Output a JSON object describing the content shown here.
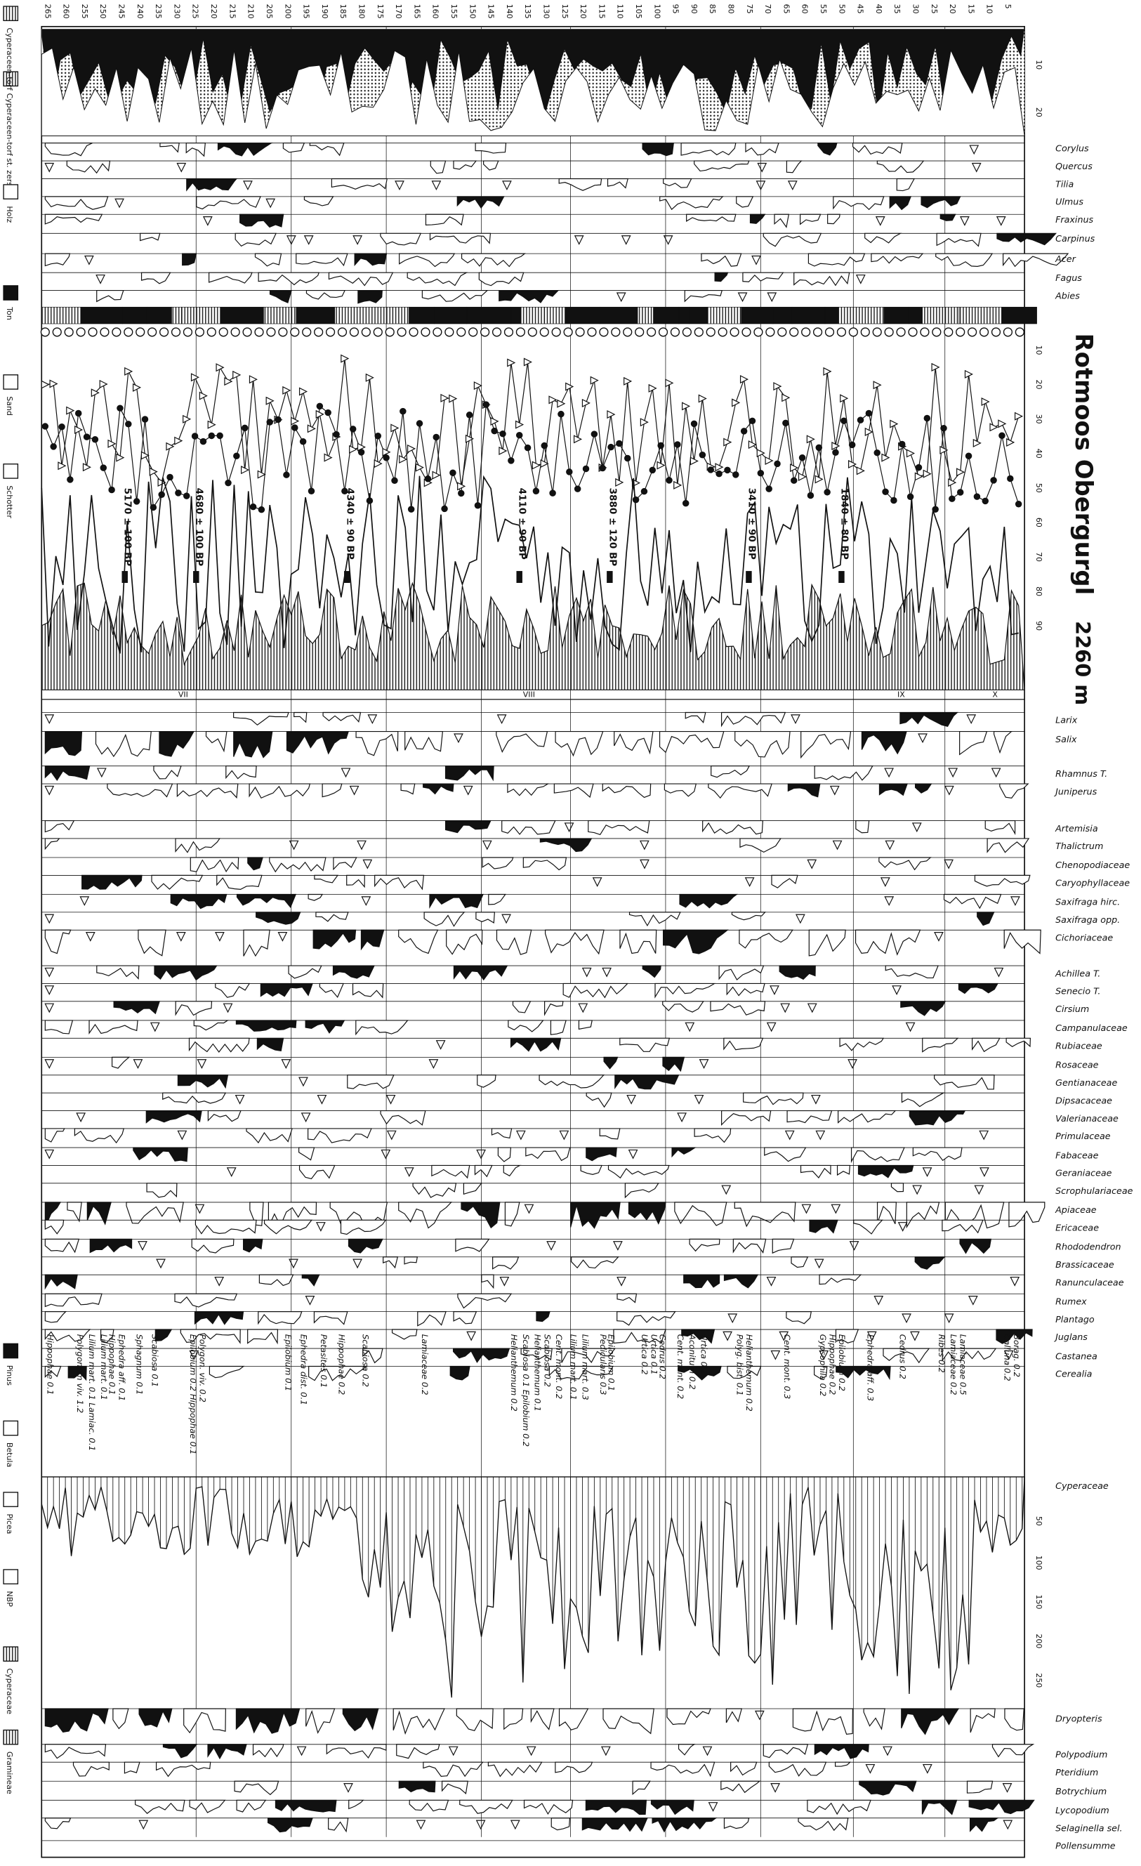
{
  "title": "Rotmoos Obergurgl",
  "elevation": "2260 m",
  "depths": [
    "265",
    "260",
    "255",
    "250",
    "245",
    "240",
    "235",
    "230",
    "225",
    "220",
    "215",
    "210",
    "205",
    "200",
    "195",
    "190",
    "185",
    "180",
    "175",
    "170",
    "165",
    "160",
    "155",
    "150",
    "145",
    "140",
    "135",
    "130",
    "125",
    "120",
    "115",
    "110",
    "105",
    "100",
    "95",
    "90",
    "85",
    "80",
    "75",
    "70",
    "65",
    "60",
    "55",
    "50",
    "45",
    "40",
    "35",
    "30",
    "25",
    "20",
    "15",
    "10",
    "5"
  ],
  "upper_taxa": [
    "Corylus",
    "Quercus",
    "Tilia",
    "Ulmus",
    "Fraxinus",
    "Carpinus",
    "Acer",
    "Fagus",
    "Abies"
  ],
  "lower_taxa": [
    "Larix",
    "Salix",
    "Rhamnus T.",
    "Juniperus",
    "Artemisia",
    "Thalictrum",
    "Chenopodiaceae",
    "Caryophyllaceae",
    "Saxifraga hirc.",
    "Saxifraga opp.",
    "Cichoriaceae",
    "Achillea T.",
    "Senecio T.",
    "Cirsium",
    "Campanulaceae",
    "Rubiaceae",
    "Rosaceae",
    "Gentianaceae",
    "Dipsacaceae",
    "Valerianaceae",
    "Primulaceae",
    "Fabaceae",
    "Geraniaceae",
    "Scrophulariaceae",
    "Apiaceae",
    "Ericaceae",
    "Rhododendron",
    "Brassicaceae",
    "Ranunculaceae",
    "Rumex",
    "Plantago",
    "Juglans",
    "Castanea",
    "Cerealia"
  ],
  "cyperaceae_label": "Cyperaceae",
  "fern_taxa": [
    "Dryopteris",
    "Polypodium",
    "Pteridium",
    "Botrychium",
    "Lycopodium",
    "Selaginella sel.",
    "Pollensumme"
  ],
  "dates": [
    "5170 ± 100 BP",
    "4680 ± 100 BP",
    "4340 ± 90 BP",
    "4110 ± 90 BP",
    "3880 ± 120 BP",
    "3410 ± 90 BP",
    "1840 ± 80 BP"
  ],
  "zones": [
    "VII",
    "VIII",
    "IX",
    "X"
  ],
  "top_scale": [
    "10",
    "20"
  ],
  "mid_scale": [
    "10",
    "20",
    "30",
    "40",
    "50",
    "60",
    "70",
    "80",
    "90"
  ],
  "cyp_scale": [
    "50",
    "100",
    "150",
    "200",
    "250"
  ],
  "legend": [
    "Cyperaceen-torf",
    "Cyperaceen-torf st. zers.",
    "Holz",
    "Ton",
    "Sand",
    "Schotter",
    "Pinus",
    "Betula",
    "Picea",
    "NBP",
    "Cyperaceae",
    "Gramineae"
  ],
  "rare_taxa": [
    "Hippophae 0.1",
    "Polygonum viv. 1.2",
    "Lilium mart. 0.1 Lamiac. 0.1",
    "Lilium mart. 0.1",
    "Hippophae 0.1",
    "Ephedra aff. 0.1",
    "Sphagnum 0.1",
    "Scabiosa 0.1",
    "Epilobium 0.2 Hippophae 0.1",
    "Polygon. viv. 0.2",
    "Epilobium 0.1",
    "Ephedra dist. 0.1",
    "Petasites 0.1",
    "Hippophae 0.2",
    "Scabiosa 0.2",
    "Lamiaceae 0.2",
    "Helianthemum 0.2",
    "Scabiosa 0.1 Epilobium 0.2",
    "Helianthemum 0.1",
    "Scabiosa 0.2",
    "Cent. mont. 0.2",
    "Lilium mart. 0.1",
    "Lilium mart. 0.3",
    "Pedicularis 0.3",
    "Epilobium 0.1",
    "Urtica 0.2",
    "Urtica 0.1",
    "Cedrus 0.2",
    "Cent. mont. 0.2",
    "Aconitum 0.2",
    "Urtica 0.2",
    "Polyg. bist. 0.1",
    "Helianthemum 0.2",
    "Cent. mont. 0.3",
    "Gypsophila 0.2",
    "Hippophae 0.2",
    "Epilobium 0.2",
    "Ephedra aff. 0.3",
    "Cedrus 0.2",
    "Ribes 0.2",
    "Lamiaceae 0.2",
    "Lamiaceae 0.5",
    "Calluna 0.2",
    "Borag. 0.2"
  ]
}
